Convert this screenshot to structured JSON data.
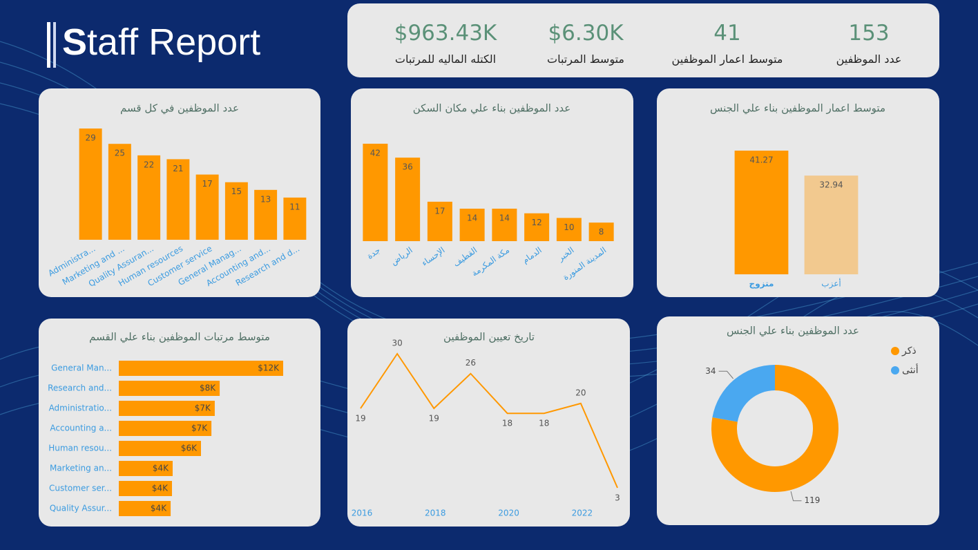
{
  "header": {
    "title": "Staff Report"
  },
  "kpis": [
    {
      "value": "$963.43K",
      "label": "الكتله الماليه للمرتبات"
    },
    {
      "value": "$6.30K",
      "label": "متوسط المرتبات"
    },
    {
      "value": "41",
      "label": "متوسط اعمار الموظفين"
    },
    {
      "value": "153",
      "label": "عدد الموظفين"
    }
  ],
  "chart_data": [
    {
      "type": "bar",
      "title": "عدد الموظفين في كل قسم",
      "color": "#ff9800",
      "categories": [
        "Administra...",
        "Marketing and ...",
        "Quality Assuran...",
        "Human resources",
        "Customer service",
        "General Manag...",
        "Accounting and...",
        "Research and d..."
      ],
      "values": [
        29,
        25,
        22,
        21,
        17,
        15,
        13,
        11
      ]
    },
    {
      "type": "bar",
      "title": "عدد الموظفين بناء علي مكان السكن",
      "color": "#ff9800",
      "categories": [
        "جدة",
        "الرياض",
        "الإحساء",
        "القطيف",
        "مكة المكرمة",
        "الدمام",
        "الخبر",
        "المدينة المنورة"
      ],
      "values": [
        42,
        36,
        17,
        14,
        14,
        12,
        10,
        8
      ]
    },
    {
      "type": "bar",
      "title": "متوسط اعمار الموظفين بناء علي الجنس",
      "colors": [
        "#ff9800",
        "#f2c98f"
      ],
      "categories": [
        "متزوج",
        "أعزب"
      ],
      "values": [
        41.27,
        32.94
      ]
    },
    {
      "type": "hbar",
      "title": "متوسط مرتبات الموظفين بناء علي القسم",
      "color": "#ff9800",
      "categories": [
        "General Man...",
        "Research and...",
        "Administratio...",
        "Accounting a...",
        "Human resou...",
        "Marketing an...",
        "Customer ser...",
        "Quality Assur..."
      ],
      "values": [
        12300,
        7550,
        7180,
        6930,
        6150,
        4030,
        3980,
        3880
      ],
      "value_labels": [
        "$12K",
        "$8K",
        "$7K",
        "$7K",
        "$6K",
        "$4K",
        "$4K",
        "$4K"
      ]
    },
    {
      "type": "line",
      "title": "تاريخ تعيين الموظفين",
      "color": "#ff9800",
      "x": [
        2016,
        2017,
        2018,
        2019,
        2020,
        2021,
        2022,
        2023
      ],
      "values": [
        19,
        30,
        19,
        26,
        18,
        18,
        20,
        3
      ],
      "xlim": [
        2016,
        2023
      ],
      "xticks": [
        2016,
        2018,
        2020,
        2022
      ]
    },
    {
      "type": "pie",
      "title": "عدد الموظفين بناء علي الجنس",
      "categories": [
        "ذكر",
        "أنثى"
      ],
      "values": [
        119,
        34
      ],
      "colors": [
        "#ff9800",
        "#4aa8f0"
      ],
      "legend": "top-right"
    }
  ]
}
